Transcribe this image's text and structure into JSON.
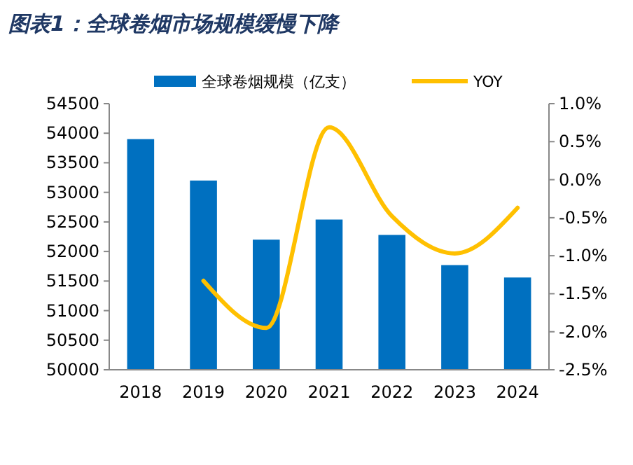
{
  "chart_data": {
    "type": "bar",
    "title": "图表1：全球卷烟市场规模缓慢下降",
    "categories": [
      "2018",
      "2019",
      "2020",
      "2021",
      "2022",
      "2023",
      "2024"
    ],
    "series": [
      {
        "name": "全球卷烟规模（亿支）",
        "color": "#0070c0",
        "values": [
          53900,
          53200,
          52200,
          52540,
          52280,
          51770,
          51560
        ]
      },
      {
        "name": "YOY",
        "type": "line",
        "axis": "y2",
        "color": "#ffc000",
        "values": [
          null,
          -1.33,
          -1.95,
          0.69,
          -0.48,
          -0.97,
          -0.37
        ]
      }
    ],
    "ylim": [
      50000,
      54500
    ],
    "yticks": [
      50000,
      50500,
      51000,
      51500,
      52000,
      52500,
      53000,
      53500,
      54000,
      54500
    ],
    "y2lim": [
      -2.5,
      1.0
    ],
    "y2ticks": [
      {
        "value": -2.5,
        "label": "-2.5%"
      },
      {
        "value": -2.0,
        "label": "-2.0%"
      },
      {
        "value": -1.5,
        "label": "-1.5%"
      },
      {
        "value": -1.0,
        "label": "-1.0%"
      },
      {
        "value": -0.5,
        "label": "-0.5%"
      },
      {
        "value": 0,
        "label": "0.0%"
      },
      {
        "value": 0.5,
        "label": "0.5%"
      },
      {
        "value": 1.0,
        "label": "1.0%"
      }
    ],
    "legend": "top",
    "grid": false,
    "marker": "none",
    "line_style": "solid"
  }
}
